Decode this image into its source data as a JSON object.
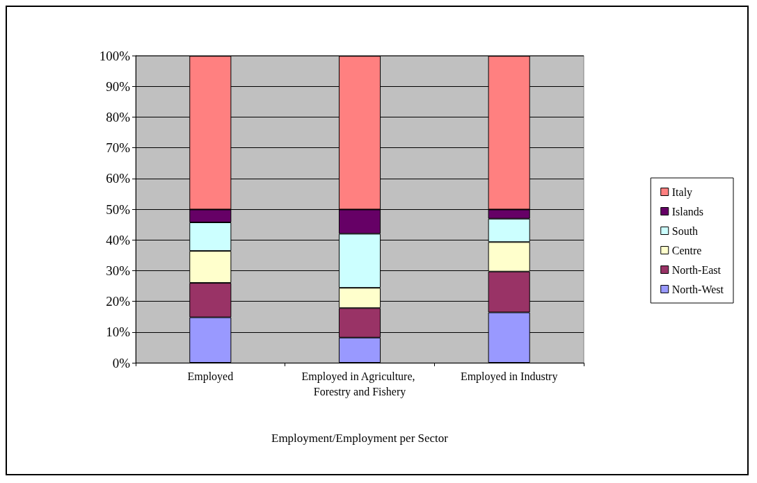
{
  "chart_data": {
    "type": "bar",
    "stacked": true,
    "categories": [
      "Employed",
      "Employed in Agriculture, Forestry and Fishery",
      "Employed in Industry"
    ],
    "xlabel": "Employment/Employment per Sector",
    "series": [
      {
        "name": "North-West",
        "color": "#9999ff",
        "values": [
          14.8,
          8.2,
          16.4
        ]
      },
      {
        "name": "North-East",
        "color": "#993366",
        "values": [
          11.2,
          9.6,
          13.3
        ]
      },
      {
        "name": "Centre",
        "color": "#ffffcc",
        "values": [
          10.4,
          6.6,
          9.6
        ]
      },
      {
        "name": "South",
        "color": "#ccffff",
        "values": [
          9.3,
          17.6,
          7.6
        ]
      },
      {
        "name": "Islands",
        "color": "#660066",
        "values": [
          4.2,
          7.9,
          3.0
        ]
      },
      {
        "name": "Italy",
        "color": "#ff8080",
        "values": [
          50,
          50,
          50
        ]
      }
    ],
    "ylim": [
      0,
      100
    ],
    "yticks": [
      {
        "value": 0,
        "label": "0%"
      },
      {
        "value": 10,
        "label": "10%"
      },
      {
        "value": 20,
        "label": "20%"
      },
      {
        "value": 30,
        "label": "30%"
      },
      {
        "value": 40,
        "label": "40%"
      },
      {
        "value": 50,
        "label": "50%"
      },
      {
        "value": 60,
        "label": "60%"
      },
      {
        "value": 70,
        "label": "70%"
      },
      {
        "value": 80,
        "label": "80%"
      },
      {
        "value": 90,
        "label": "90%"
      },
      {
        "value": 100,
        "label": "100%"
      }
    ],
    "grid": "y",
    "legend": "right"
  }
}
